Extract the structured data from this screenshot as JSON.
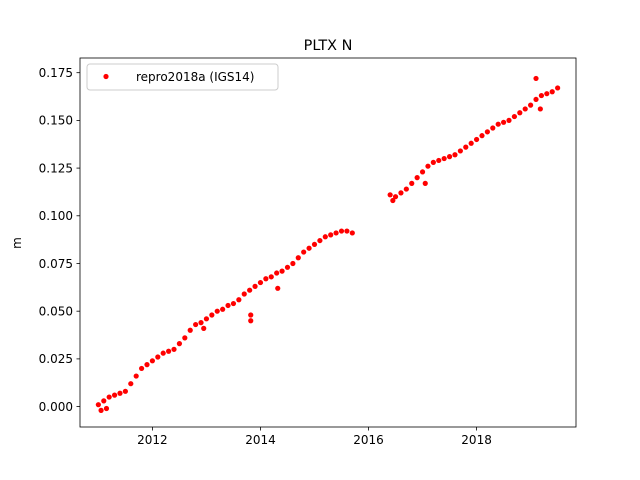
{
  "chart_data": {
    "type": "scatter",
    "title": "PLTX N",
    "xlabel": "",
    "ylabel": "m",
    "xlim": [
      2010.66,
      2019.84
    ],
    "ylim": [
      -0.0107,
      0.1827
    ],
    "xticks": [
      2012,
      2014,
      2016,
      2018
    ],
    "xtick_labels": [
      "2012",
      "2014",
      "2016",
      "2018"
    ],
    "yticks": [
      0.0,
      0.025,
      0.05,
      0.075,
      0.1,
      0.125,
      0.15,
      0.175
    ],
    "ytick_labels": [
      "0.000",
      "0.025",
      "0.050",
      "0.075",
      "0.100",
      "0.125",
      "0.150",
      "0.175"
    ],
    "grid": false,
    "legend_position": "top-left",
    "series": [
      {
        "name": "repro2018a (IGS14)",
        "color": "#ff0000",
        "marker": "circle",
        "x": [
          2011.0,
          2011.1,
          2011.2,
          2011.3,
          2011.4,
          2011.5,
          2011.6,
          2011.7,
          2011.8,
          2011.9,
          2012.0,
          2012.1,
          2012.2,
          2012.3,
          2012.4,
          2012.5,
          2012.6,
          2012.7,
          2012.8,
          2012.9,
          2013.0,
          2013.1,
          2013.2,
          2013.3,
          2013.4,
          2013.5,
          2013.6,
          2013.7,
          2013.8,
          2013.9,
          2014.0,
          2014.1,
          2014.2,
          2014.3,
          2014.4,
          2014.5,
          2014.6,
          2014.7,
          2014.8,
          2014.9,
          2015.0,
          2015.1,
          2015.2,
          2015.3,
          2015.4,
          2015.5,
          2015.6,
          2015.7,
          2016.4,
          2016.5,
          2016.6,
          2016.7,
          2016.8,
          2016.9,
          2017.0,
          2017.1,
          2017.2,
          2017.3,
          2017.4,
          2017.5,
          2017.6,
          2017.7,
          2017.8,
          2017.9,
          2018.0,
          2018.1,
          2018.2,
          2018.3,
          2018.4,
          2018.5,
          2018.6,
          2018.7,
          2018.8,
          2018.9,
          2019.0,
          2019.1,
          2019.2,
          2019.3,
          2019.4,
          2019.5,
          2013.82,
          2013.82,
          2014.32,
          2019.1,
          2019.18,
          2011.05,
          2011.15,
          2012.95,
          2016.45,
          2017.05
        ],
        "y": [
          0.001,
          0.003,
          0.005,
          0.006,
          0.007,
          0.008,
          0.012,
          0.016,
          0.02,
          0.022,
          0.024,
          0.026,
          0.028,
          0.029,
          0.03,
          0.033,
          0.036,
          0.04,
          0.043,
          0.044,
          0.046,
          0.048,
          0.05,
          0.051,
          0.053,
          0.054,
          0.056,
          0.059,
          0.061,
          0.063,
          0.065,
          0.067,
          0.068,
          0.07,
          0.071,
          0.073,
          0.075,
          0.078,
          0.081,
          0.083,
          0.085,
          0.087,
          0.089,
          0.09,
          0.091,
          0.092,
          0.092,
          0.091,
          0.111,
          0.11,
          0.112,
          0.114,
          0.117,
          0.12,
          0.123,
          0.126,
          0.128,
          0.129,
          0.13,
          0.131,
          0.132,
          0.134,
          0.136,
          0.138,
          0.14,
          0.142,
          0.144,
          0.146,
          0.148,
          0.149,
          0.15,
          0.152,
          0.154,
          0.156,
          0.158,
          0.161,
          0.163,
          0.164,
          0.165,
          0.167,
          0.048,
          0.045,
          0.062,
          0.172,
          0.156,
          -0.002,
          -0.001,
          0.041,
          0.108,
          0.117
        ]
      }
    ]
  }
}
